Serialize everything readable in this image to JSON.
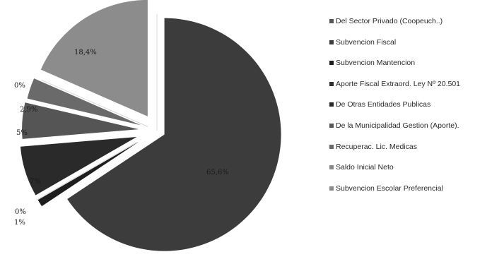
{
  "chart_data": {
    "type": "pie",
    "title": "",
    "legend_position": "right",
    "slices": [
      {
        "name": "Del Sector Privado (Coopeuch..)",
        "value": 0,
        "label": "0%",
        "color": "#555555"
      },
      {
        "name": "Subvencion Fiscal",
        "value": 65.6,
        "label": "65,6%",
        "color": "#3c3c3c"
      },
      {
        "name": "Subvencion Mantencion",
        "value": 1,
        "label": "1%",
        "color": "#1e1e1e"
      },
      {
        "name": "Aporte Fiscal Extraord. Ley Nº 20.501",
        "value": 0,
        "label": "0%",
        "color": "#2e2e2e"
      },
      {
        "name": "De Otras Entidades Publicas",
        "value": 7,
        "label": "7%",
        "color": "#2a2a2a"
      },
      {
        "name": "De la Municipalidad Gestion (Aporte).",
        "value": 5,
        "label": "5%",
        "color": "#555555"
      },
      {
        "name": "Recuperac. Lic. Medicas",
        "value": 2.9,
        "label": "2,9%",
        "color": "#6a6a6a"
      },
      {
        "name": "Saldo Inicial Neto",
        "value": 0,
        "label": "0%",
        "color": "#8a8a8a"
      },
      {
        "name": "Subvencion Escolar Preferencial",
        "value": 18.4,
        "label": "18,4%",
        "color": "#8c8c8c"
      }
    ]
  }
}
